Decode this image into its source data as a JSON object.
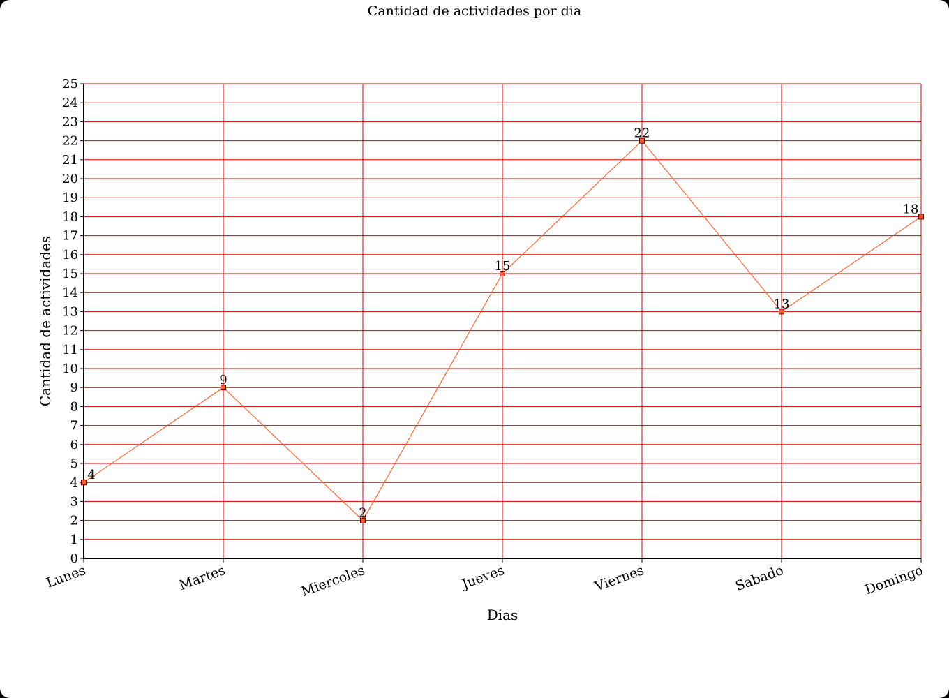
{
  "chart_data": {
    "type": "line",
    "title": "Cantidad de actividades por dia",
    "xlabel": "Dias",
    "ylabel": "Cantidad de actividades",
    "categories": [
      "Lunes",
      "Martes",
      "Miercoles",
      "Jueves",
      "Viernes",
      "Sabado",
      "Domingo"
    ],
    "series": [
      {
        "values": [
          4,
          9,
          2,
          15,
          22,
          13,
          18
        ]
      }
    ],
    "ylim": [
      0,
      25
    ],
    "ytick_step": 1,
    "grid": true,
    "legend": "none",
    "data_labels": true,
    "colors": {
      "grid": "#d40000",
      "line": "#ff6633",
      "marker_fill": "#ff5a33",
      "marker_stroke": "#660000",
      "axis": "#000000"
    }
  }
}
